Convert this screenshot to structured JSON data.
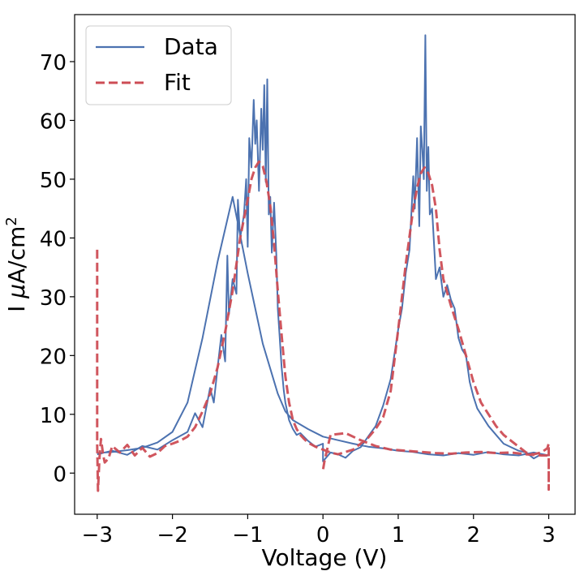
{
  "chart_data": {
    "type": "line",
    "title": "",
    "xlabel": "Voltage (V)",
    "ylabel_prefix": "I ",
    "ylabel_mu": "μ",
    "ylabel_unit": "A/cm",
    "ylabel_sup": "2",
    "xlim": [
      -3.3,
      3.35
    ],
    "ylim": [
      -7,
      78
    ],
    "xticks": [
      -3,
      -2,
      -1,
      0,
      1,
      2,
      3
    ],
    "xtick_labels": [
      "−3",
      "−2",
      "−1",
      "0",
      "1",
      "2",
      "3"
    ],
    "yticks": [
      0,
      10,
      20,
      30,
      40,
      50,
      60,
      70
    ],
    "ytick_labels": [
      "0",
      "10",
      "20",
      "30",
      "40",
      "50",
      "60",
      "70"
    ],
    "grid": false,
    "legend_position": "top-left",
    "colors": {
      "data": "#4c72b0",
      "fit": "#cd4d55"
    },
    "series": [
      {
        "name": "Data",
        "style": "solid",
        "x": [
          -3.0,
          -2.8,
          -2.6,
          -2.4,
          -2.2,
          -2.0,
          -1.8,
          -1.7,
          -1.6,
          -1.5,
          -1.45,
          -1.4,
          -1.35,
          -1.3,
          -1.27,
          -1.25,
          -1.2,
          -1.15,
          -1.13,
          -1.1,
          -1.05,
          -1.02,
          -1.0,
          -0.98,
          -0.95,
          -0.92,
          -0.9,
          -0.88,
          -0.85,
          -0.82,
          -0.8,
          -0.78,
          -0.76,
          -0.74,
          -0.72,
          -0.7,
          -0.68,
          -0.65,
          -0.62,
          -0.6,
          -0.58,
          -0.55,
          -0.52,
          -0.5,
          -0.45,
          -0.4,
          -0.35,
          -0.3,
          -0.2,
          -0.1,
          0.0,
          0.0,
          0.1,
          0.2,
          0.3,
          0.4,
          0.5,
          0.6,
          0.7,
          0.8,
          0.9,
          1.0,
          1.05,
          1.1,
          1.15,
          1.2,
          1.22,
          1.25,
          1.28,
          1.3,
          1.32,
          1.34,
          1.36,
          1.38,
          1.4,
          1.42,
          1.45,
          1.48,
          1.5,
          1.55,
          1.6,
          1.65,
          1.7,
          1.75,
          1.8,
          1.85,
          1.9,
          1.95,
          2.0,
          2.05,
          2.1,
          2.2,
          2.3,
          2.4,
          2.5,
          2.6,
          2.7,
          2.8,
          2.9,
          3.0,
          2.8,
          2.6,
          2.4,
          2.2,
          2.0,
          1.8,
          1.6,
          1.4,
          1.2,
          1.0,
          0.8,
          0.6,
          0.4,
          0.2,
          0.0,
          -0.2,
          -0.4,
          -0.5,
          -0.6,
          -0.8,
          -1.0,
          -1.2,
          -1.4,
          -1.6,
          -1.8,
          -2.0,
          -2.2,
          -2.4,
          -2.6,
          -2.8,
          -3.0
        ],
        "y": [
          3.2,
          3.8,
          3.1,
          4.6,
          4.0,
          5.6,
          7.0,
          10.2,
          7.8,
          14.5,
          12.0,
          18.0,
          23.5,
          19.0,
          37.0,
          27.0,
          33.0,
          30.5,
          46.5,
          40.0,
          44.0,
          50.0,
          38.5,
          57.0,
          52.0,
          63.5,
          56.0,
          60.0,
          48.0,
          62.0,
          55.0,
          66.0,
          49.5,
          67.0,
          44.0,
          47.0,
          37.5,
          46.0,
          37.0,
          28.0,
          24.0,
          18.0,
          14.0,
          12.0,
          9.0,
          7.5,
          6.5,
          6.8,
          5.5,
          4.5,
          5.0,
          2.0,
          3.5,
          3.2,
          2.6,
          3.8,
          4.4,
          6.2,
          8.0,
          11.5,
          16.0,
          24.5,
          28.0,
          34.0,
          38.0,
          50.5,
          45.0,
          57.0,
          42.0,
          59.0,
          55.0,
          50.0,
          74.5,
          48.0,
          55.5,
          44.0,
          45.0,
          38.0,
          33.0,
          35.0,
          30.0,
          32.0,
          29.5,
          28.0,
          23.0,
          21.0,
          20.0,
          15.5,
          13.0,
          11.0,
          10.0,
          8.0,
          6.5,
          5.0,
          4.4,
          3.8,
          3.5,
          2.5,
          3.2,
          3.0,
          3.5,
          3.0,
          3.2,
          3.6,
          3.1,
          3.4,
          3.0,
          3.2,
          3.6,
          3.8,
          4.2,
          4.5,
          5.0,
          5.6,
          6.2,
          7.5,
          9.0,
          10.5,
          13.5,
          22.0,
          34.0,
          47.0,
          36.0,
          23.0,
          12.0,
          7.0,
          5.2,
          4.3,
          3.9,
          3.6,
          3.4
        ]
      },
      {
        "name": "Fit",
        "style": "dashed",
        "x": [
          -3.0,
          -3.0,
          -2.99,
          -2.97,
          -2.95,
          -2.92,
          -2.9,
          -2.85,
          -2.8,
          -2.7,
          -2.6,
          -2.5,
          -2.4,
          -2.3,
          -2.2,
          -2.1,
          -2.0,
          -1.9,
          -1.8,
          -1.7,
          -1.6,
          -1.5,
          -1.4,
          -1.3,
          -1.2,
          -1.1,
          -1.0,
          -0.95,
          -0.9,
          -0.85,
          -0.8,
          -0.75,
          -0.7,
          -0.65,
          -0.6,
          -0.55,
          -0.5,
          -0.45,
          -0.4,
          -0.35,
          -0.3,
          -0.25,
          -0.2,
          -0.1,
          0.0,
          0.1,
          0.2,
          0.3,
          0.4,
          0.5,
          0.6,
          0.7,
          0.8,
          0.9,
          1.0,
          1.1,
          1.2,
          1.25,
          1.3,
          1.35,
          1.4,
          1.45,
          1.5,
          1.55,
          1.6,
          1.7,
          1.8,
          1.9,
          2.0,
          2.1,
          2.2,
          2.3,
          2.4,
          2.5,
          2.6,
          2.7,
          2.8,
          2.9,
          2.98,
          3.0,
          3.0,
          3.0,
          2.9,
          2.7,
          2.5,
          2.3,
          2.1,
          1.9,
          1.7,
          1.5,
          1.3,
          1.1,
          0.9,
          0.7,
          0.5,
          0.3,
          0.1,
          0.02,
          0.0
        ],
        "y": [
          38.0,
          5.0,
          -3.0,
          2.5,
          5.8,
          3.0,
          1.8,
          2.5,
          4.6,
          3.5,
          4.8,
          3.0,
          4.3,
          2.8,
          3.4,
          4.6,
          5.0,
          5.5,
          6.2,
          7.8,
          10.5,
          13.5,
          18.0,
          24.0,
          31.0,
          40.0,
          46.5,
          50.0,
          52.0,
          53.0,
          52.2,
          49.5,
          45.5,
          39.0,
          31.0,
          23.5,
          16.5,
          12.0,
          9.0,
          7.5,
          6.5,
          5.8,
          5.2,
          4.5,
          4.0,
          3.5,
          3.2,
          3.6,
          4.0,
          5.0,
          6.0,
          7.5,
          9.5,
          14.0,
          24.5,
          35.5,
          45.0,
          48.5,
          51.0,
          52.0,
          51.0,
          49.0,
          45.0,
          38.0,
          33.0,
          28.5,
          24.5,
          20.0,
          15.5,
          12.0,
          10.0,
          8.0,
          6.5,
          5.5,
          4.5,
          3.5,
          3.2,
          3.5,
          4.2,
          5.0,
          -2.8,
          3.0,
          3.0,
          3.2,
          3.5,
          3.4,
          3.6,
          3.5,
          3.3,
          3.4,
          3.6,
          3.8,
          4.0,
          4.6,
          5.6,
          6.8,
          6.5,
          2.0,
          0.5
        ]
      }
    ]
  }
}
